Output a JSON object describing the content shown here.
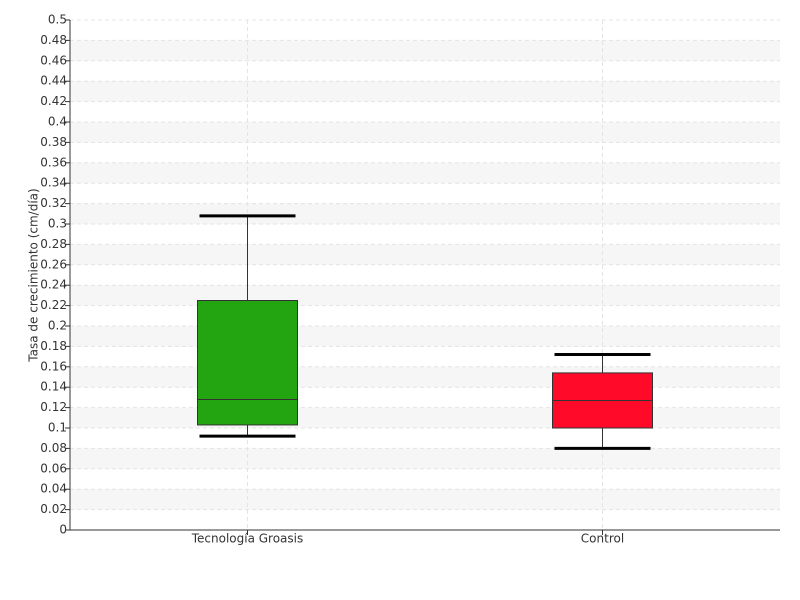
{
  "chart_data": {
    "type": "box",
    "y_label": "Tasa de crecimiento (cm/día)",
    "categories": [
      "Tecnología Groasis",
      "Control"
    ],
    "boxes": [
      {
        "low": 0.092,
        "q1": 0.103,
        "median": 0.128,
        "q3": 0.225,
        "high": 0.308,
        "color": "#22a511"
      },
      {
        "low": 0.08,
        "q1": 0.1,
        "median": 0.127,
        "q3": 0.154,
        "high": 0.172,
        "color": "#ff0a28"
      }
    ],
    "ylim": [
      0,
      0.5
    ],
    "yticks": [
      0,
      0.02,
      0.04,
      0.06,
      0.08,
      0.1,
      0.12,
      0.14,
      0.16,
      0.18,
      0.2,
      0.22,
      0.24,
      0.26,
      0.28,
      0.3,
      0.32,
      0.34,
      0.36,
      0.38,
      0.4,
      0.42,
      0.44,
      0.46,
      0.48,
      0.5
    ],
    "grid": true
  }
}
